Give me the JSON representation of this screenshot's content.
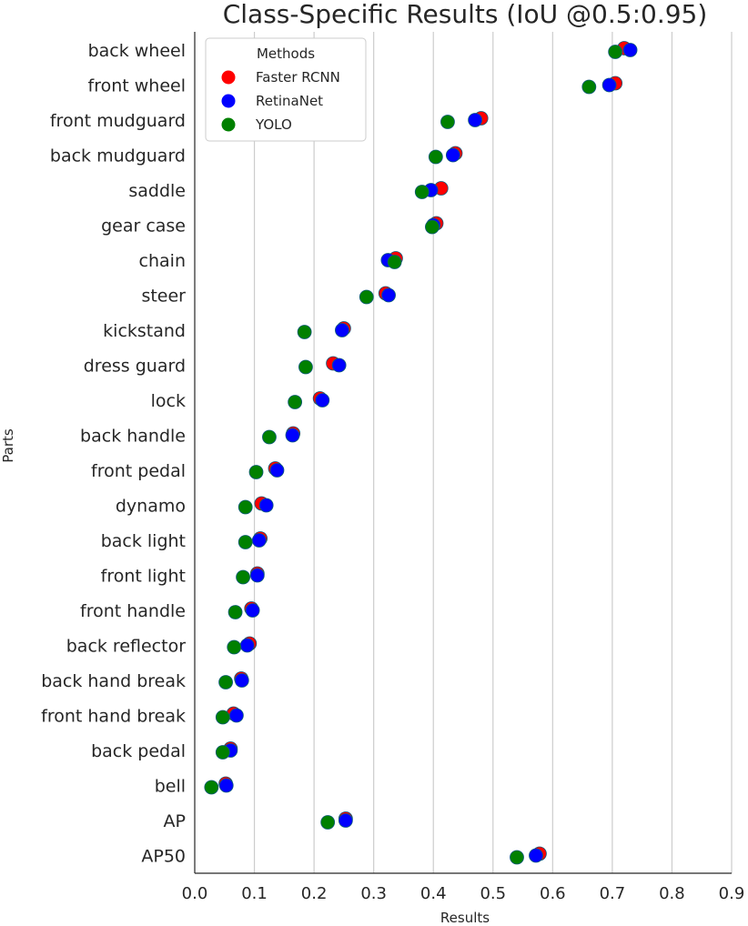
{
  "chart_data": {
    "type": "scatter",
    "title": "Class-Specific Results (IoU @0.5:0.95)",
    "xlabel": "Results",
    "ylabel": "Parts",
    "xlim": [
      0,
      0.9
    ],
    "xticks": [
      0,
      0.1,
      0.2,
      0.3,
      0.4,
      0.5,
      0.6,
      0.7,
      0.8,
      0.9
    ],
    "xtick_labels": [
      "0.0",
      "0.1",
      "0.2",
      "0.3",
      "0.4",
      "0.5",
      "0.6",
      "0.7",
      "0.8",
      "0.9"
    ],
    "grid": "vertical",
    "legend_title": "Methods",
    "legend_position": "top-left",
    "categories": [
      "back wheel",
      "front wheel",
      "front mudguard",
      "back mudguard",
      "saddle",
      "gear case",
      "chain",
      "steer",
      "kickstand",
      "dress guard",
      "lock",
      "back handle",
      "front pedal",
      "dynamo",
      "back light",
      "front light",
      "front handle",
      "back reflector",
      "back hand break",
      "front hand break",
      "back pedal",
      "bell",
      "AP",
      "AP50"
    ],
    "series": [
      {
        "name": "Faster RCNN",
        "color": "#ff0000",
        "values": [
          0.72,
          0.705,
          0.48,
          0.437,
          0.413,
          0.405,
          0.337,
          0.32,
          0.25,
          0.232,
          0.21,
          0.165,
          0.135,
          0.112,
          0.11,
          0.105,
          0.095,
          0.092,
          0.078,
          0.065,
          0.06,
          0.052,
          0.253,
          0.578
        ]
      },
      {
        "name": "RetinaNet",
        "color": "#0000ff",
        "values": [
          0.73,
          0.695,
          0.47,
          0.433,
          0.396,
          0.4,
          0.324,
          0.325,
          0.247,
          0.242,
          0.214,
          0.164,
          0.138,
          0.12,
          0.108,
          0.105,
          0.097,
          0.088,
          0.079,
          0.07,
          0.06,
          0.053,
          0.253,
          0.572
        ]
      },
      {
        "name": "YOLO",
        "color": "#008000",
        "values": [
          0.705,
          0.661,
          0.424,
          0.404,
          0.381,
          0.398,
          0.335,
          0.288,
          0.184,
          0.186,
          0.168,
          0.125,
          0.103,
          0.085,
          0.085,
          0.081,
          0.068,
          0.066,
          0.052,
          0.047,
          0.047,
          0.028,
          0.223,
          0.54
        ]
      }
    ]
  }
}
